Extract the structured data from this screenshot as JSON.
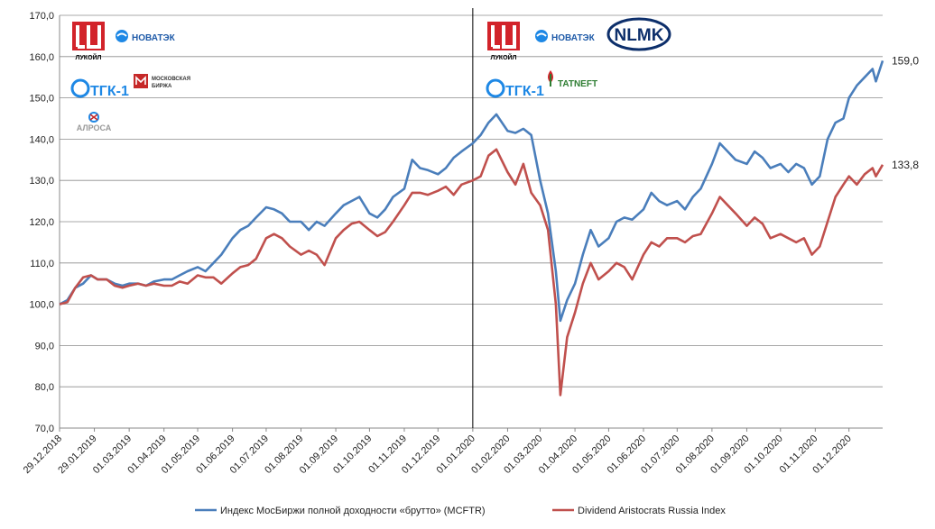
{
  "chart_data": {
    "type": "line",
    "title": "",
    "xlabel": "",
    "ylabel": "",
    "ylim": [
      70,
      170
    ],
    "y_ticks": [
      "70,0",
      "80,0",
      "90,0",
      "100,0",
      "110,0",
      "120,0",
      "130,0",
      "140,0",
      "150,0",
      "160,0",
      "170,0"
    ],
    "x_ticks": [
      "29.12.2018",
      "29.01.2019",
      "01.03.2019",
      "01.04.2019",
      "01.05.2019",
      "01.06.2019",
      "01.07.2019",
      "01.08.2019",
      "01.09.2019",
      "01.10.2019",
      "01.11.2019",
      "01.12.2019",
      "01.01.2020",
      "01.02.2020",
      "01.03.2020",
      "01.04.2020",
      "01.05.2020",
      "01.06.2020",
      "01.07.2020",
      "01.08.2020",
      "01.09.2020",
      "01.10.2020",
      "01.11.2020",
      "01.12.2020"
    ],
    "grid": "horizontal",
    "legend_position": "bottom",
    "vertical_marker_date": "01.01.2020",
    "series": [
      {
        "name": "Индекс МосБиржи полной доходности «брутто» (MCFTR)",
        "color": "#4a7ebb",
        "end_label": "159,0",
        "points": [
          [
            "29.12.2018",
            100.0
          ],
          [
            "05.01.2019",
            101.0
          ],
          [
            "12.01.2019",
            104.0
          ],
          [
            "19.01.2019",
            105.0
          ],
          [
            "26.01.2019",
            107.0
          ],
          [
            "01.02.2019",
            106.0
          ],
          [
            "09.02.2019",
            106.0
          ],
          [
            "16.02.2019",
            105.0
          ],
          [
            "23.02.2019",
            104.5
          ],
          [
            "01.03.2019",
            105.0
          ],
          [
            "09.03.2019",
            105.0
          ],
          [
            "16.03.2019",
            104.5
          ],
          [
            "23.03.2019",
            105.5
          ],
          [
            "01.04.2019",
            106.0
          ],
          [
            "08.04.2019",
            106.0
          ],
          [
            "15.04.2019",
            107.0
          ],
          [
            "22.04.2019",
            108.0
          ],
          [
            "01.05.2019",
            109.0
          ],
          [
            "08.05.2019",
            108.0
          ],
          [
            "15.05.2019",
            110.0
          ],
          [
            "22.05.2019",
            112.0
          ],
          [
            "01.06.2019",
            116.0
          ],
          [
            "08.06.2019",
            118.0
          ],
          [
            "15.06.2019",
            119.0
          ],
          [
            "22.06.2019",
            121.0
          ],
          [
            "01.07.2019",
            123.5
          ],
          [
            "08.07.2019",
            123.0
          ],
          [
            "15.07.2019",
            122.0
          ],
          [
            "22.07.2019",
            120.0
          ],
          [
            "01.08.2019",
            120.0
          ],
          [
            "08.08.2019",
            118.0
          ],
          [
            "15.08.2019",
            120.0
          ],
          [
            "22.08.2019",
            119.0
          ],
          [
            "01.09.2019",
            122.0
          ],
          [
            "08.09.2019",
            124.0
          ],
          [
            "15.09.2019",
            125.0
          ],
          [
            "22.09.2019",
            126.0
          ],
          [
            "01.10.2019",
            122.0
          ],
          [
            "08.10.2019",
            121.0
          ],
          [
            "15.10.2019",
            123.0
          ],
          [
            "22.10.2019",
            126.0
          ],
          [
            "01.11.2019",
            128.0
          ],
          [
            "08.11.2019",
            135.0
          ],
          [
            "15.11.2019",
            133.0
          ],
          [
            "22.11.2019",
            132.5
          ],
          [
            "01.12.2019",
            131.5
          ],
          [
            "08.12.2019",
            133.0
          ],
          [
            "15.12.2019",
            135.5
          ],
          [
            "22.12.2019",
            137.0
          ],
          [
            "01.01.2020",
            139.0
          ],
          [
            "08.01.2020",
            141.0
          ],
          [
            "15.01.2020",
            144.0
          ],
          [
            "22.01.2020",
            146.0
          ],
          [
            "01.02.2020",
            142.0
          ],
          [
            "08.02.2020",
            141.5
          ],
          [
            "15.02.2020",
            142.5
          ],
          [
            "22.02.2020",
            141.0
          ],
          [
            "01.03.2020",
            130.0
          ],
          [
            "08.03.2020",
            122.0
          ],
          [
            "15.03.2020",
            108.0
          ],
          [
            "19.03.2020",
            96.0
          ],
          [
            "25.03.2020",
            101.0
          ],
          [
            "01.04.2020",
            105.0
          ],
          [
            "08.04.2020",
            112.0
          ],
          [
            "15.04.2020",
            118.0
          ],
          [
            "22.04.2020",
            114.0
          ],
          [
            "01.05.2020",
            116.0
          ],
          [
            "08.05.2020",
            120.0
          ],
          [
            "15.05.2020",
            121.0
          ],
          [
            "22.05.2020",
            120.5
          ],
          [
            "01.06.2020",
            123.0
          ],
          [
            "08.06.2020",
            127.0
          ],
          [
            "15.06.2020",
            125.0
          ],
          [
            "22.06.2020",
            124.0
          ],
          [
            "01.07.2020",
            125.0
          ],
          [
            "08.07.2020",
            123.0
          ],
          [
            "15.07.2020",
            126.0
          ],
          [
            "22.07.2020",
            128.0
          ],
          [
            "01.08.2020",
            134.0
          ],
          [
            "08.08.2020",
            139.0
          ],
          [
            "15.08.2020",
            137.0
          ],
          [
            "22.08.2020",
            135.0
          ],
          [
            "01.09.2020",
            134.0
          ],
          [
            "08.09.2020",
            137.0
          ],
          [
            "15.09.2020",
            135.5
          ],
          [
            "22.09.2020",
            133.0
          ],
          [
            "01.10.2020",
            134.0
          ],
          [
            "08.10.2020",
            132.0
          ],
          [
            "15.10.2020",
            134.0
          ],
          [
            "22.10.2020",
            133.0
          ],
          [
            "29.10.2020",
            129.0
          ],
          [
            "05.11.2020",
            131.0
          ],
          [
            "12.11.2020",
            140.0
          ],
          [
            "19.11.2020",
            144.0
          ],
          [
            "26.11.2020",
            145.0
          ],
          [
            "01.12.2020",
            150.0
          ],
          [
            "08.12.2020",
            153.0
          ],
          [
            "15.12.2020",
            155.0
          ],
          [
            "22.12.2020",
            157.0
          ],
          [
            "25.12.2020",
            154.0
          ],
          [
            "31.12.2020",
            159.0
          ]
        ]
      },
      {
        "name": "Dividend Aristocrats Russia Index",
        "color": "#c0504d",
        "end_label": "133,8",
        "points": [
          [
            "29.12.2018",
            100.0
          ],
          [
            "05.01.2019",
            100.5
          ],
          [
            "12.01.2019",
            104.0
          ],
          [
            "19.01.2019",
            106.5
          ],
          [
            "26.01.2019",
            107.0
          ],
          [
            "01.02.2019",
            106.0
          ],
          [
            "09.02.2019",
            106.0
          ],
          [
            "16.02.2019",
            104.5
          ],
          [
            "23.02.2019",
            104.0
          ],
          [
            "01.03.2019",
            104.5
          ],
          [
            "09.03.2019",
            105.0
          ],
          [
            "16.03.2019",
            104.5
          ],
          [
            "23.03.2019",
            105.0
          ],
          [
            "01.04.2019",
            104.5
          ],
          [
            "08.04.2019",
            104.5
          ],
          [
            "15.04.2019",
            105.5
          ],
          [
            "22.04.2019",
            105.0
          ],
          [
            "01.05.2019",
            107.0
          ],
          [
            "08.05.2019",
            106.5
          ],
          [
            "15.05.2019",
            106.5
          ],
          [
            "22.05.2019",
            105.0
          ],
          [
            "01.06.2019",
            107.5
          ],
          [
            "08.06.2019",
            109.0
          ],
          [
            "15.06.2019",
            109.5
          ],
          [
            "22.06.2019",
            111.0
          ],
          [
            "01.07.2019",
            116.0
          ],
          [
            "08.07.2019",
            117.0
          ],
          [
            "15.07.2019",
            116.0
          ],
          [
            "22.07.2019",
            114.0
          ],
          [
            "01.08.2019",
            112.0
          ],
          [
            "08.08.2019",
            113.0
          ],
          [
            "15.08.2019",
            112.0
          ],
          [
            "22.08.2019",
            109.5
          ],
          [
            "01.09.2019",
            116.0
          ],
          [
            "08.09.2019",
            118.0
          ],
          [
            "15.09.2019",
            119.5
          ],
          [
            "22.09.2019",
            120.0
          ],
          [
            "01.10.2019",
            118.0
          ],
          [
            "08.10.2019",
            116.5
          ],
          [
            "15.10.2019",
            117.5
          ],
          [
            "22.10.2019",
            120.0
          ],
          [
            "01.11.2019",
            124.0
          ],
          [
            "08.11.2019",
            127.0
          ],
          [
            "15.11.2019",
            127.0
          ],
          [
            "22.11.2019",
            126.5
          ],
          [
            "01.12.2019",
            127.5
          ],
          [
            "08.12.2019",
            128.5
          ],
          [
            "15.12.2019",
            126.5
          ],
          [
            "22.12.2019",
            129.0
          ],
          [
            "01.01.2020",
            130.0
          ],
          [
            "08.01.2020",
            131.0
          ],
          [
            "15.01.2020",
            136.0
          ],
          [
            "22.01.2020",
            137.5
          ],
          [
            "01.02.2020",
            132.0
          ],
          [
            "08.02.2020",
            129.0
          ],
          [
            "15.02.2020",
            134.0
          ],
          [
            "22.02.2020",
            127.0
          ],
          [
            "01.03.2020",
            124.0
          ],
          [
            "08.03.2020",
            118.0
          ],
          [
            "15.03.2020",
            100.0
          ],
          [
            "19.03.2020",
            78.0
          ],
          [
            "25.03.2020",
            92.0
          ],
          [
            "01.04.2020",
            98.0
          ],
          [
            "08.04.2020",
            105.0
          ],
          [
            "15.04.2020",
            110.0
          ],
          [
            "22.04.2020",
            106.0
          ],
          [
            "01.05.2020",
            108.0
          ],
          [
            "08.05.2020",
            110.0
          ],
          [
            "15.05.2020",
            109.0
          ],
          [
            "22.05.2020",
            106.0
          ],
          [
            "01.06.2020",
            112.0
          ],
          [
            "08.06.2020",
            115.0
          ],
          [
            "15.06.2020",
            114.0
          ],
          [
            "22.06.2020",
            116.0
          ],
          [
            "01.07.2020",
            116.0
          ],
          [
            "08.07.2020",
            115.0
          ],
          [
            "15.07.2020",
            116.5
          ],
          [
            "22.07.2020",
            117.0
          ],
          [
            "01.08.2020",
            122.0
          ],
          [
            "08.08.2020",
            126.0
          ],
          [
            "15.08.2020",
            124.0
          ],
          [
            "22.08.2020",
            122.0
          ],
          [
            "01.09.2020",
            119.0
          ],
          [
            "08.09.2020",
            121.0
          ],
          [
            "15.09.2020",
            119.5
          ],
          [
            "22.09.2020",
            116.0
          ],
          [
            "01.10.2020",
            117.0
          ],
          [
            "08.10.2020",
            116.0
          ],
          [
            "15.10.2020",
            115.0
          ],
          [
            "22.10.2020",
            116.0
          ],
          [
            "29.10.2020",
            112.0
          ],
          [
            "05.11.2020",
            114.0
          ],
          [
            "12.11.2020",
            120.0
          ],
          [
            "19.11.2020",
            126.0
          ],
          [
            "26.11.2020",
            129.0
          ],
          [
            "01.12.2020",
            131.0
          ],
          [
            "08.12.2020",
            129.0
          ],
          [
            "15.12.2020",
            131.5
          ],
          [
            "22.12.2020",
            133.0
          ],
          [
            "25.12.2020",
            131.0
          ],
          [
            "31.12.2020",
            133.8
          ]
        ]
      }
    ]
  },
  "logos": {
    "lukoil": "ЛУКОЙЛ",
    "novatek": "НОВАТЭК",
    "tgk": "ТГК-1",
    "moex_line1": "МОСКОВСКАЯ",
    "moex_line2": "БИРЖА",
    "alrosa": "АЛРОСА",
    "nlmk": "NLMK",
    "tatneft": "TATNEFT"
  }
}
